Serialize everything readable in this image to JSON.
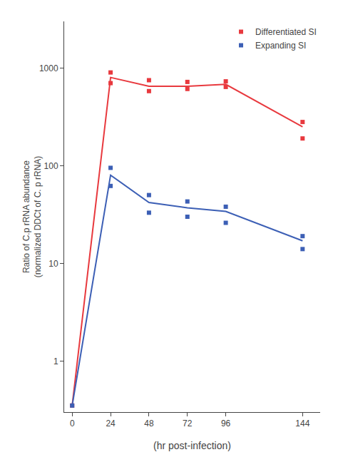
{
  "chart_data": {
    "type": "line",
    "x_label": "(hr post-infection)",
    "y_label": "Ratio of C.p rRNA abundance\n(normalized DDCt of C. p rRNA)",
    "log": "y",
    "grid": false,
    "legend": "upper right",
    "xlim": [
      -5,
      155
    ],
    "xticks": [
      0,
      24,
      48,
      72,
      96,
      144
    ],
    "ylim": [
      0.3,
      3000
    ],
    "yticks": [
      1,
      10,
      100,
      1000
    ],
    "series": [
      {
        "type": "line",
        "line_style": "solid",
        "color": "#e8393e",
        "x": [
          0,
          24,
          48,
          72,
          96,
          144
        ],
        "values": [
          0.35,
          800,
          650,
          650,
          680,
          250
        ]
      },
      {
        "type": "line",
        "line_style": "solid",
        "color": "#3c5fb5",
        "x": [
          0,
          24,
          48,
          72,
          96,
          144
        ],
        "values": [
          0.35,
          80,
          42,
          37,
          34,
          17
        ]
      },
      {
        "type": "scatter",
        "marker": "square",
        "name": "Differentiated SI",
        "color": "#e8393e",
        "x": [
          0,
          24,
          24,
          48,
          48,
          72,
          72,
          96,
          96,
          144,
          144
        ],
        "values": [
          0.35,
          900,
          700,
          750,
          580,
          720,
          610,
          730,
          640,
          280,
          190
        ]
      },
      {
        "type": "scatter",
        "marker": "square",
        "name": "Expanding SI",
        "color": "#3c5fb5",
        "x": [
          0,
          24,
          24,
          48,
          48,
          72,
          72,
          96,
          96,
          144,
          144
        ],
        "values": [
          0.35,
          95,
          62,
          50,
          33,
          43,
          30,
          38,
          26,
          19,
          14
        ]
      }
    ]
  }
}
